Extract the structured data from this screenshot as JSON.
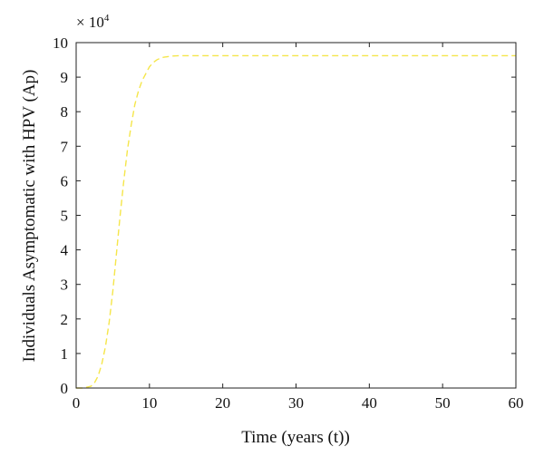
{
  "chart_data": {
    "type": "line",
    "title": "",
    "xlabel": "Time (years (t))",
    "ylabel": "Individuals Asymptomatic with HPV (Ap)",
    "y_multiplier_base": "× 10",
    "y_multiplier_exp": "4",
    "xlim": [
      0,
      60
    ],
    "ylim": [
      0,
      10
    ],
    "x_ticks": [
      0,
      10,
      20,
      30,
      40,
      50,
      60
    ],
    "y_ticks": [
      0,
      1,
      2,
      3,
      4,
      5,
      6,
      7,
      8,
      9,
      10
    ],
    "grid": false,
    "legend": "none",
    "series": [
      {
        "line_style": "dashed",
        "color": "#f5e64a",
        "x": [
          0,
          1,
          2,
          2.5,
          3,
          3.5,
          4,
          4.5,
          5,
          5.5,
          6,
          6.5,
          7,
          7.5,
          8,
          8.5,
          9,
          9.5,
          10,
          10.5,
          11,
          11.5,
          12,
          13,
          14,
          15,
          17,
          20,
          30,
          40,
          50,
          60
        ],
        "y": [
          0,
          0,
          0.05,
          0.15,
          0.35,
          0.7,
          1.2,
          1.9,
          2.8,
          3.9,
          5.0,
          6.0,
          6.9,
          7.6,
          8.2,
          8.6,
          8.9,
          9.1,
          9.3,
          9.42,
          9.5,
          9.55,
          9.58,
          9.61,
          9.62,
          9.62,
          9.62,
          9.62,
          9.62,
          9.62,
          9.62,
          9.62
        ]
      }
    ]
  }
}
